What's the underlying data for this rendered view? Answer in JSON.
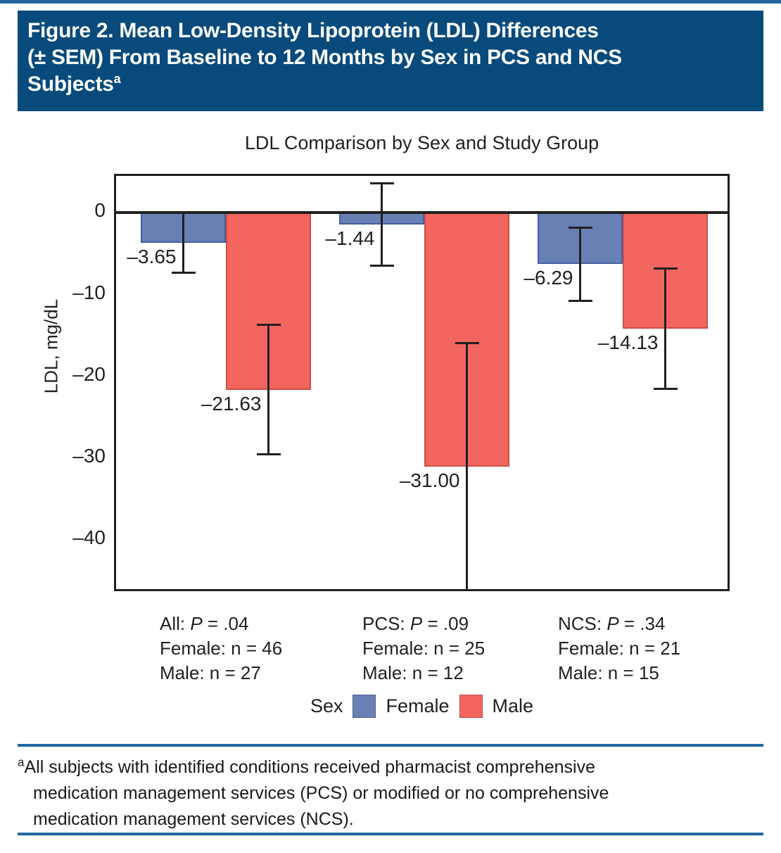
{
  "header": {
    "title_lines": [
      "Figure 2. Mean Low-Density Lipoprotein (LDL) Differences",
      "(± SEM) From Baseline to 12 Months by Sex in PCS and NCS",
      "Subjects"
    ],
    "sup": "a"
  },
  "chart_data": {
    "type": "bar",
    "title": "LDL Comparison by Sex and Study Group",
    "ylabel": "LDL, mg/dL",
    "ylim": [
      4.5,
      -46.5
    ],
    "grid": false,
    "legend_position": "bottom",
    "yticks": [
      {
        "value": 0,
        "label": "0"
      },
      {
        "value": -10,
        "label": "–10"
      },
      {
        "value": -20,
        "label": "–20"
      },
      {
        "value": -30,
        "label": "–30"
      },
      {
        "value": -40,
        "label": "–40"
      }
    ],
    "categories": [
      "All",
      "PCS",
      "NCS"
    ],
    "series": [
      {
        "name": "Female",
        "color": "#6980b5",
        "border_color": "#41619f",
        "values": [
          -3.65,
          -1.44,
          -6.29
        ],
        "sem": [
          3.65,
          5.0,
          4.5
        ],
        "value_labels": [
          "–3.65",
          "–1.44",
          "–6.29"
        ]
      },
      {
        "name": "Male",
        "color": "#f2665f",
        "border_color": "#cd4d45",
        "values": [
          -21.63,
          -31.0,
          -14.13
        ],
        "sem": [
          7.9,
          15.1,
          7.35
        ],
        "value_labels": [
          "–21.63",
          "–31.00",
          "–14.13"
        ]
      }
    ],
    "group_stats": [
      {
        "prefix": "All: ",
        "p_var": "P",
        "p_rest": " = .04",
        "female": "Female: n = 46",
        "male": "Male: n = 27"
      },
      {
        "prefix": "PCS: ",
        "p_var": "P",
        "p_rest": " = .09",
        "female": "Female: n = 25",
        "male": "Male: n = 12"
      },
      {
        "prefix": "NCS: ",
        "p_var": "P",
        "p_rest": " = .34",
        "female": "Female: n = 21",
        "male": "Male: n = 15"
      }
    ],
    "legend": {
      "title": "Sex",
      "entries": [
        {
          "label": "Female",
          "color": "#6980b5"
        },
        {
          "label": "Male",
          "color": "#f2665f"
        }
      ]
    }
  },
  "footnote": {
    "marker": "a",
    "lines": [
      "All subjects with identified conditions received pharmacist comprehensive",
      "medication management services (PCS) or modified or no comprehensive",
      "medication management services (NCS)."
    ]
  },
  "colors": {
    "header_bg": "#084a7c",
    "accent_rule": "#2167a0",
    "text": "#231f20"
  }
}
